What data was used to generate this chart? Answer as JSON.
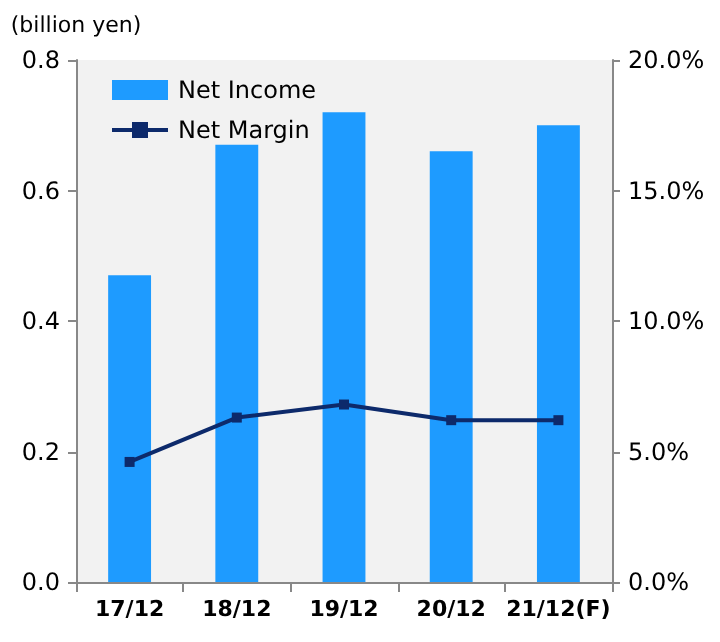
{
  "chart_data": {
    "type": "bar",
    "ylabel": "(billion yen)",
    "categories": [
      "17/12",
      "18/12",
      "19/12",
      "20/12",
      "21/12(F)"
    ],
    "series": [
      {
        "name": "Net Income",
        "color": "#1e9bff",
        "values": [
          0.47,
          0.67,
          0.72,
          0.66,
          0.7
        ]
      },
      {
        "name": "Net Margin",
        "type": "line",
        "axis": "y2",
        "color": "#0d2a6b",
        "marker": "square",
        "values": [
          4.6,
          6.3,
          6.8,
          6.2,
          6.2
        ]
      }
    ],
    "ylim": [
      0,
      0.8
    ],
    "yticks": [
      {
        "value": 0,
        "label": "0.0"
      },
      {
        "value": 0.2,
        "label": "0.2"
      },
      {
        "value": 0.4,
        "label": "0.4"
      },
      {
        "value": 0.6,
        "label": "0.6"
      },
      {
        "value": 0.8,
        "label": "0.8"
      }
    ],
    "y2lim": [
      0,
      20
    ],
    "y2ticks": [
      {
        "value": 0,
        "label": "0.0%"
      },
      {
        "value": 5,
        "label": "5.0%"
      },
      {
        "value": 10,
        "label": "10.0%"
      },
      {
        "value": 15,
        "label": "15.0%"
      },
      {
        "value": 20,
        "label": "20.0%"
      }
    ],
    "legend": "top left",
    "grid": false
  }
}
